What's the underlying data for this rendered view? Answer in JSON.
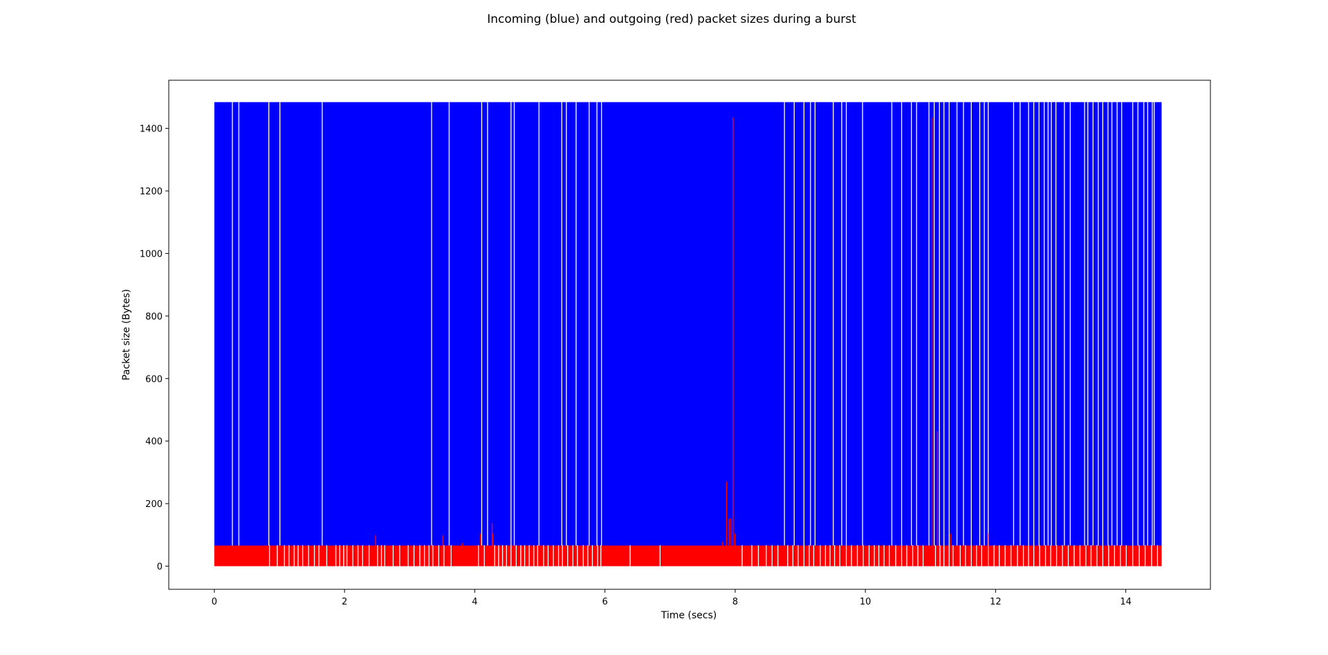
{
  "chart_data": {
    "type": "bar",
    "title": "Incoming (blue) and outgoing (red) packet sizes during a burst",
    "xlabel": "Time (secs)",
    "ylabel": "Packet size (Bytes)",
    "xlim": [
      -0.7,
      15.3
    ],
    "ylim": [
      -74,
      1554
    ],
    "xticks": [
      0,
      2,
      4,
      6,
      8,
      10,
      12,
      14
    ],
    "yticks": [
      0,
      200,
      400,
      600,
      800,
      1000,
      1200,
      1400
    ],
    "grid": false,
    "series": [
      {
        "name": "incoming",
        "color": "#0000ff",
        "value": 1484,
        "time_range": [
          0,
          14.55
        ],
        "gaps": [
          0.27,
          0.37,
          0.83,
          1.0,
          1.65,
          3.33,
          3.6,
          4.1,
          4.19,
          4.55,
          4.6,
          4.98,
          5.33,
          5.4,
          5.55,
          5.75,
          5.87,
          5.94,
          8.75,
          8.9,
          9.05,
          9.15,
          9.22,
          9.5,
          9.63,
          9.7,
          9.95,
          10.4,
          10.55,
          10.7,
          10.78,
          10.97,
          11.05,
          11.13,
          11.2,
          11.28,
          11.4,
          11.5,
          11.62,
          11.75,
          11.82,
          11.88,
          12.27,
          12.37,
          12.5,
          12.58,
          12.66,
          12.74,
          12.8,
          12.85,
          12.92,
          13.05,
          13.14,
          13.36,
          13.41,
          13.49,
          13.57,
          13.64,
          13.72,
          13.78,
          13.86,
          13.93,
          14.1,
          14.18,
          14.27,
          14.33,
          14.4,
          14.43
        ]
      },
      {
        "name": "outgoing",
        "color": "#ff0000",
        "base_value": 66,
        "time_range": [
          0,
          14.55
        ],
        "gaps": [
          0.84,
          0.96,
          1.07,
          1.14,
          1.22,
          1.28,
          1.35,
          1.44,
          1.53,
          1.6,
          1.72,
          1.86,
          1.92,
          1.98,
          2.03,
          2.12,
          2.2,
          2.27,
          2.37,
          2.5,
          2.56,
          2.61,
          2.74,
          2.84,
          2.97,
          3.06,
          3.15,
          3.22,
          3.29,
          3.35,
          3.44,
          3.52,
          3.63,
          4.05,
          4.14,
          4.3,
          4.36,
          4.42,
          4.48,
          4.55,
          4.63,
          4.7,
          4.76,
          4.83,
          4.9,
          4.96,
          5.05,
          5.12,
          5.2,
          5.28,
          5.34,
          5.42,
          5.5,
          5.57,
          5.66,
          5.73,
          5.8,
          5.88,
          5.93,
          6.38,
          6.84,
          8.1,
          8.25,
          8.35,
          8.47,
          8.56,
          8.65,
          8.8,
          8.88,
          8.96,
          9.05,
          9.13,
          9.2,
          9.3,
          9.38,
          9.45,
          9.52,
          9.6,
          9.7,
          9.78,
          9.87,
          9.96,
          10.05,
          10.13,
          10.2,
          10.28,
          10.36,
          10.46,
          10.55,
          10.63,
          10.72,
          10.8,
          10.88,
          11.07,
          11.14,
          11.2,
          11.28,
          11.34,
          11.45,
          11.53,
          11.62,
          11.7,
          11.78,
          11.88,
          11.97,
          12.05,
          12.14,
          12.23,
          12.33,
          12.42,
          12.5,
          12.58,
          12.67,
          12.76,
          12.84,
          12.93,
          13.02,
          13.11,
          13.2,
          13.29,
          13.38,
          13.46,
          13.55,
          13.64,
          13.73,
          13.82,
          13.91,
          14.0,
          14.1,
          14.2,
          14.29,
          14.39,
          14.48
        ],
        "spikes": [
          {
            "x": 2.47,
            "y": 99
          },
          {
            "x": 3.5,
            "y": 99
          },
          {
            "x": 3.8,
            "y": 74
          },
          {
            "x": 4.08,
            "y": 104
          },
          {
            "x": 4.26,
            "y": 138
          },
          {
            "x": 4.27,
            "y": 104
          },
          {
            "x": 7.8,
            "y": 78
          },
          {
            "x": 7.86,
            "y": 270
          },
          {
            "x": 7.9,
            "y": 152
          },
          {
            "x": 7.93,
            "y": 152
          },
          {
            "x": 7.96,
            "y": 1435
          },
          {
            "x": 7.99,
            "y": 104
          },
          {
            "x": 11.02,
            "y": 1435
          },
          {
            "x": 11.1,
            "y": 432
          },
          {
            "x": 11.3,
            "y": 104
          },
          {
            "x": 11.87,
            "y": 104
          }
        ]
      }
    ]
  }
}
